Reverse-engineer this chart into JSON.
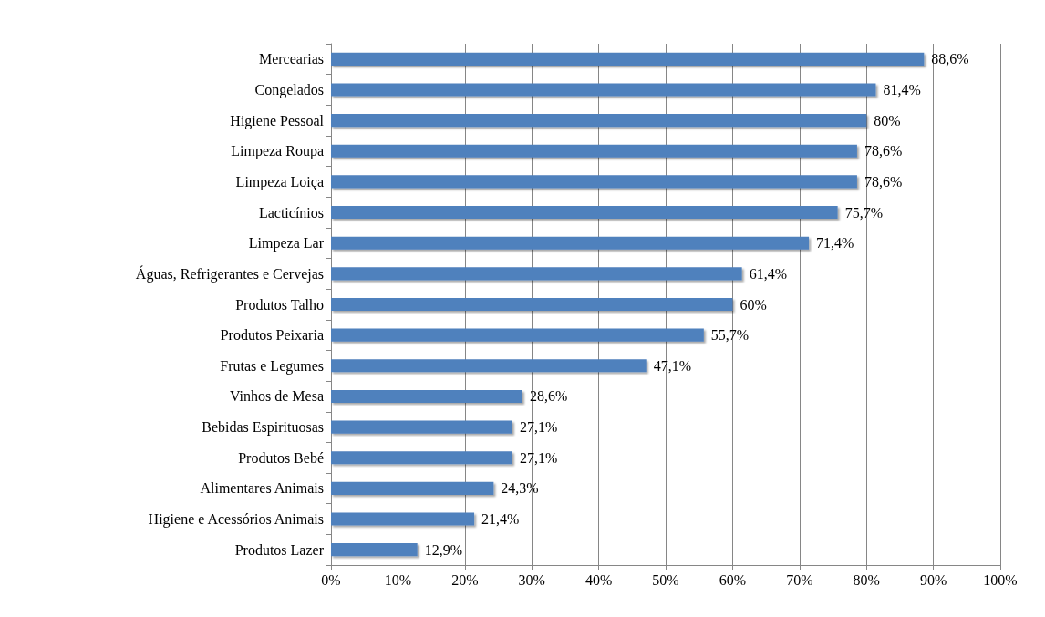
{
  "chart_data": {
    "type": "bar",
    "orientation": "horizontal",
    "categories": [
      "Mercearias",
      "Congelados",
      "Higiene Pessoal",
      "Limpeza Roupa",
      "Limpeza Loiça",
      "Lacticínios",
      "Limpeza Lar",
      "Águas, Refrigerantes e Cervejas",
      "Produtos Talho",
      "Produtos Peixaria",
      "Frutas e Legumes",
      "Vinhos de Mesa",
      "Bebidas Espirituosas",
      "Produtos Bebé",
      "Alimentares Animais",
      "Higiene e Acessórios Animais",
      "Produtos Lazer"
    ],
    "values": [
      88.6,
      81.4,
      80,
      78.6,
      78.6,
      75.7,
      71.4,
      61.4,
      60,
      55.7,
      47.1,
      28.6,
      27.1,
      27.1,
      24.3,
      21.4,
      12.9
    ],
    "value_labels": [
      "88,6%",
      "81,4%",
      "80%",
      "78,6%",
      "78,6%",
      "75,7%",
      "71,4%",
      "61,4%",
      "60%",
      "55,7%",
      "47,1%",
      "28,6%",
      "27,1%",
      "27,1%",
      "24,3%",
      "21,4%",
      "12,9%"
    ],
    "color": "#4f81bd",
    "xlim": [
      0,
      100
    ],
    "xticks": [
      {
        "value": 0,
        "label": "0%"
      },
      {
        "value": 10,
        "label": "10%"
      },
      {
        "value": 20,
        "label": "20%"
      },
      {
        "value": 30,
        "label": "30%"
      },
      {
        "value": 40,
        "label": "40%"
      },
      {
        "value": 50,
        "label": "50%"
      },
      {
        "value": 60,
        "label": "60%"
      },
      {
        "value": 70,
        "label": "70%"
      },
      {
        "value": 80,
        "label": "80%"
      },
      {
        "value": 90,
        "label": "90%"
      },
      {
        "value": 100,
        "label": "100%"
      }
    ],
    "grid": "x"
  }
}
